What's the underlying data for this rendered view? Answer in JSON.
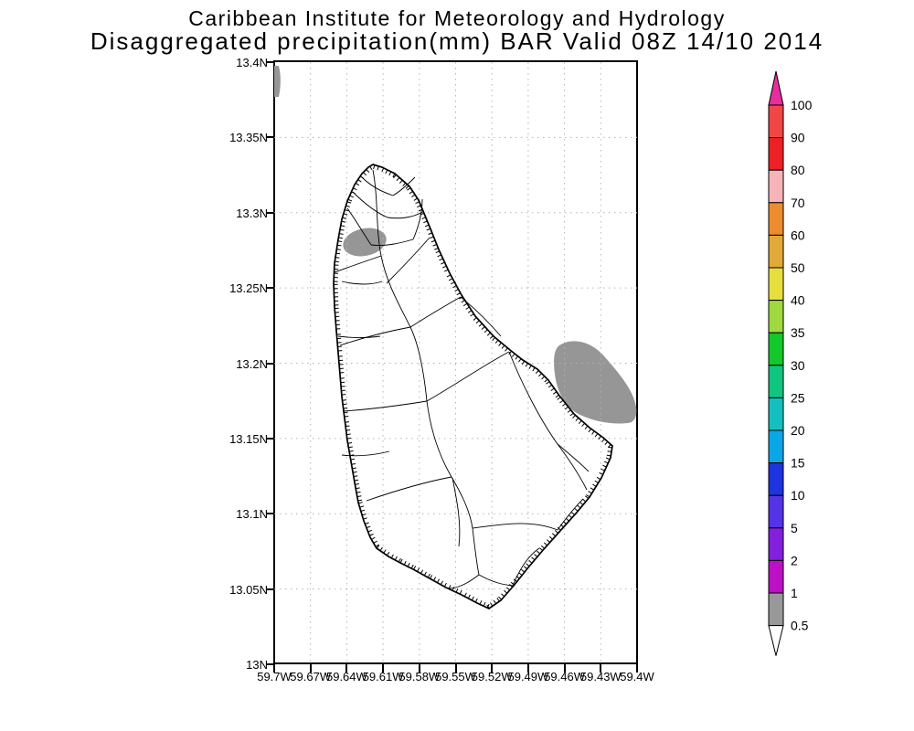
{
  "title": {
    "line1": "Caribbean Institute for Meteorology and Hydrology",
    "line2": "Disaggregated precipitation(mm) BAR Valid 08Z 14/10 2014"
  },
  "axes": {
    "y_ticks": [
      "13.4N",
      "13.35N",
      "13.3N",
      "13.25N",
      "13.2N",
      "13.15N",
      "13.1N",
      "13.05N",
      "13N"
    ],
    "x_ticks": [
      "59.7W",
      "59.67W",
      "59.64W",
      "59.61W",
      "59.58W",
      "59.55W",
      "59.52W",
      "59.49W",
      "59.46W",
      "59.43W",
      "59.4W"
    ]
  },
  "colorbar": {
    "boundary_labels": [
      "100",
      "90",
      "80",
      "70",
      "60",
      "50",
      "40",
      "35",
      "30",
      "25",
      "20",
      "15",
      "10",
      "5",
      "2",
      "1",
      "0.5"
    ],
    "segment_colors": [
      "#f14646",
      "#ec2025",
      "#f6b3b8",
      "#ec8c2f",
      "#e0a93a",
      "#e6de3d",
      "#9fd83f",
      "#12c82a",
      "#0fc57f",
      "#14bfc0",
      "#0aa7e6",
      "#1e34e0",
      "#5433e6",
      "#8220dd",
      "#bb10c6",
      "#989898"
    ],
    "above_max_color": "#e82d9c",
    "below_min_color": "#ffffff"
  },
  "chart_data": {
    "type": "heatmap",
    "title": "Disaggregated precipitation(mm) BAR Valid 08Z 14/10 2014",
    "institution": "Caribbean Institute for Meteorology and Hydrology",
    "region_code": "BAR",
    "valid_time": "08Z 14/10 2014",
    "units": "mm",
    "x_axis": {
      "ticks": [
        "59.7W",
        "59.67W",
        "59.64W",
        "59.61W",
        "59.58W",
        "59.55W",
        "59.52W",
        "59.49W",
        "59.46W",
        "59.43W",
        "59.4W"
      ],
      "range_deg_west": [
        59.7,
        59.4
      ]
    },
    "y_axis": {
      "ticks": [
        "13.4N",
        "13.35N",
        "13.3N",
        "13.25N",
        "13.2N",
        "13.15N",
        "13.1N",
        "13.05N",
        "13N"
      ],
      "range_deg_north": [
        13.0,
        13.4
      ]
    },
    "grid": true,
    "legend_position": "right",
    "scale_levels_mm": [
      0.5,
      1,
      2,
      5,
      10,
      15,
      20,
      25,
      30,
      35,
      40,
      50,
      60,
      70,
      80,
      90,
      100
    ],
    "scale_colors_low_to_high": [
      "#989898",
      "#bb10c6",
      "#8220dd",
      "#5433e6",
      "#1e34e0",
      "#0aa7e6",
      "#14bfc0",
      "#0fc57f",
      "#12c82a",
      "#9fd83f",
      "#e6de3d",
      "#e0a93a",
      "#ec8c2f",
      "#f6b3b8",
      "#ec2025",
      "#f14646"
    ],
    "shaded_regions": [
      {
        "area": "island interior, northwest (near 59.64W, 13.28N)",
        "value_range_mm": "0.5-1",
        "color": "#969696"
      },
      {
        "area": "offshore east of island (near 59.45W, 13.18N)",
        "value_range_mm": "0.5-1",
        "color": "#969696"
      },
      {
        "area": "sliver at top-left frame edge (near 59.7W, 13.39N)",
        "value_range_mm": "0.5-1",
        "color": "#969696"
      }
    ],
    "basemap": "Barbados coastline with watershed sub-basin boundaries"
  }
}
